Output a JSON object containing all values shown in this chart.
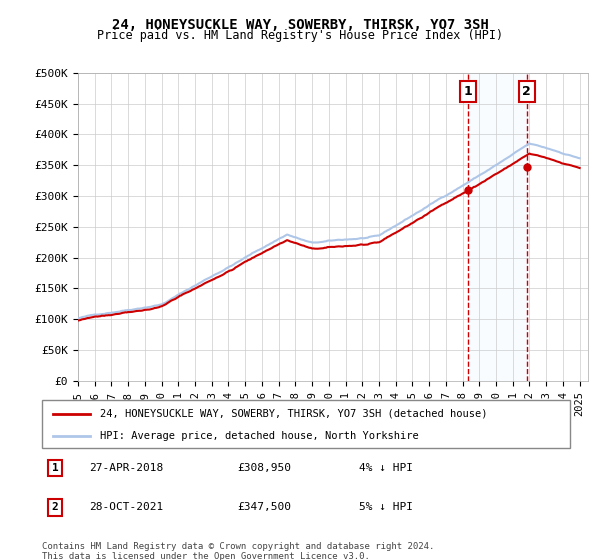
{
  "title": "24, HONEYSUCKLE WAY, SOWERBY, THIRSK, YO7 3SH",
  "subtitle": "Price paid vs. HM Land Registry's House Price Index (HPI)",
  "ylabel_ticks": [
    "£0",
    "£50K",
    "£100K",
    "£150K",
    "£200K",
    "£250K",
    "£300K",
    "£350K",
    "£400K",
    "£450K",
    "£500K"
  ],
  "ytick_values": [
    0,
    50000,
    100000,
    150000,
    200000,
    250000,
    300000,
    350000,
    400000,
    450000,
    500000
  ],
  "ylim": [
    0,
    500000
  ],
  "xlim_start": 1995.0,
  "xlim_end": 2025.5,
  "hpi_color": "#aec6e8",
  "price_color": "#cc0000",
  "marker1_x": 2018.32,
  "marker1_y": 308950,
  "marker2_x": 2021.83,
  "marker2_y": 347500,
  "marker1_date": "27-APR-2018",
  "marker1_price": "£308,950",
  "marker1_hpi": "4% ↓ HPI",
  "marker2_date": "28-OCT-2021",
  "marker2_price": "£347,500",
  "marker2_hpi": "5% ↓ HPI",
  "vline_color": "#cc0000",
  "shade_color": "#ddeeff",
  "legend_label1": "24, HONEYSUCKLE WAY, SOWERBY, THIRSK, YO7 3SH (detached house)",
  "legend_label2": "HPI: Average price, detached house, North Yorkshire",
  "footer": "Contains HM Land Registry data © Crown copyright and database right 2024.\nThis data is licensed under the Open Government Licence v3.0.",
  "xtick_years": [
    1995,
    1996,
    1997,
    1998,
    1999,
    2000,
    2001,
    2002,
    2003,
    2004,
    2005,
    2006,
    2007,
    2008,
    2009,
    2010,
    2011,
    2012,
    2013,
    2014,
    2015,
    2016,
    2017,
    2018,
    2019,
    2020,
    2021,
    2022,
    2023,
    2024,
    2025
  ],
  "background_color": "#ffffff",
  "plot_bg_color": "#ffffff",
  "grid_color": "#cccccc"
}
